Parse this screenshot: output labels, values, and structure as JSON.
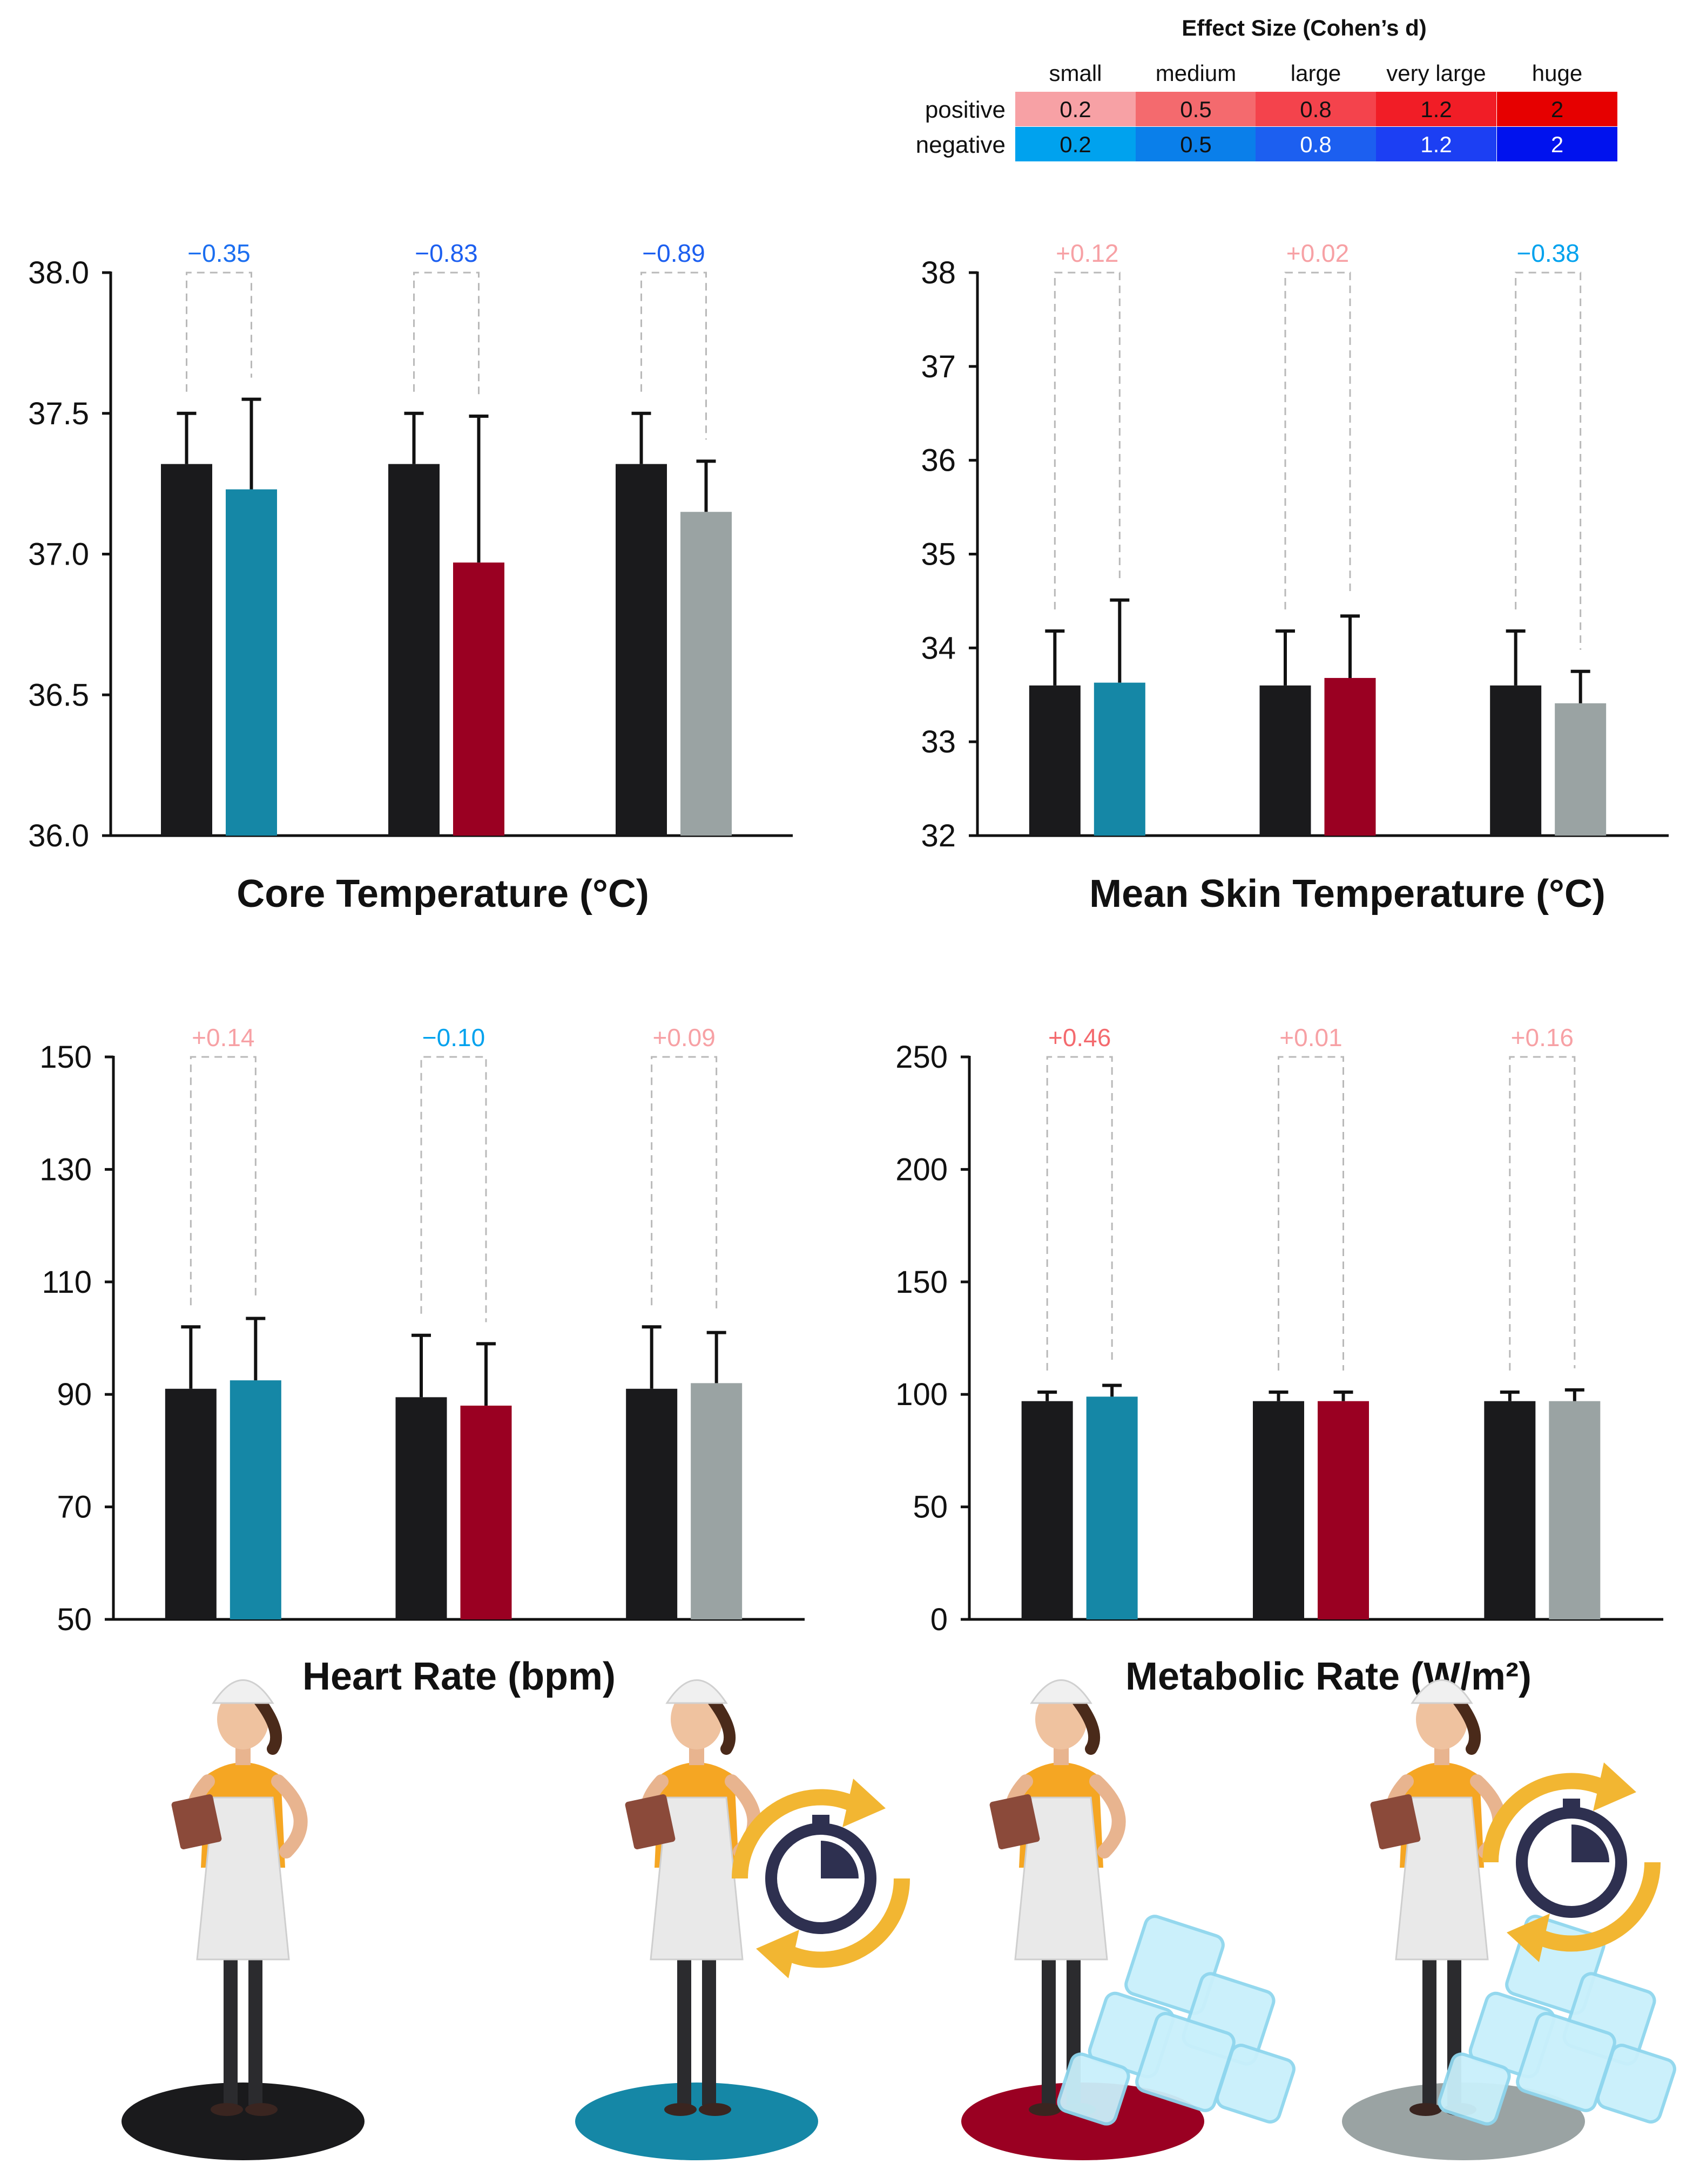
{
  "colors": {
    "baseline": "#1a1a1c",
    "condition1": "#1587a6",
    "condition2": "#9a0022",
    "condition3": "#9aa3a3",
    "axis": "#111111",
    "dash": "#b9b9b9"
  },
  "legend": {
    "title": "Effect Size (Cohen’s d)",
    "columns": [
      "small",
      "medium",
      "large",
      "very large",
      "huge"
    ],
    "rows": [
      {
        "label": "positive",
        "values": [
          "0.2",
          "0.5",
          "0.8",
          "1.2",
          "2"
        ],
        "colors": [
          "#f7a1a5",
          "#f46a6e",
          "#f4434c",
          "#f11d26",
          "#e60000"
        ]
      },
      {
        "label": "negative",
        "values": [
          "0.2",
          "0.5",
          "0.8",
          "1.2",
          "2"
        ],
        "colors": [
          "#00a2ee",
          "#0a7fea",
          "#1c5ff0",
          "#1c3ff3",
          "#0012ee"
        ]
      }
    ]
  },
  "chart_data": [
    {
      "type": "bar",
      "id": "core-temp",
      "title": "Core Temperature (°C)",
      "ylim": [
        36.0,
        38.0
      ],
      "yticks": [
        "36.0",
        "36.5",
        "37.0",
        "37.5",
        "38.0"
      ],
      "groups": [
        {
          "values": [
            37.32,
            37.23
          ],
          "errors": [
            0.18,
            0.32
          ],
          "effect": "−0.35",
          "effect_color": "#1c6ff0"
        },
        {
          "values": [
            37.32,
            36.97
          ],
          "errors": [
            0.18,
            0.52
          ],
          "effect": "−0.83",
          "effect_color": "#1c5ff0"
        },
        {
          "values": [
            37.32,
            37.15
          ],
          "errors": [
            0.18,
            0.18
          ],
          "effect": "−0.89",
          "effect_color": "#1c5ff0"
        }
      ]
    },
    {
      "type": "bar",
      "id": "skin-temp",
      "title": "Mean Skin Temperature (°C)",
      "ylim": [
        32,
        38
      ],
      "yticks": [
        "32",
        "33",
        "34",
        "35",
        "36",
        "37",
        "38"
      ],
      "groups": [
        {
          "values": [
            33.6,
            33.63
          ],
          "errors": [
            0.58,
            0.88
          ],
          "effect": "+0.12",
          "effect_color": "#f7a1a5"
        },
        {
          "values": [
            33.6,
            33.68
          ],
          "errors": [
            0.58,
            0.66
          ],
          "effect": "+0.02",
          "effect_color": "#f7a1a5"
        },
        {
          "values": [
            33.6,
            33.41
          ],
          "errors": [
            0.58,
            0.34
          ],
          "effect": "−0.38",
          "effect_color": "#00a2ee"
        }
      ]
    },
    {
      "type": "bar",
      "id": "heart-rate",
      "title": "Heart Rate (bpm)",
      "ylim": [
        50,
        150
      ],
      "yticks": [
        "50",
        "70",
        "90",
        "110",
        "130",
        "150"
      ],
      "groups": [
        {
          "values": [
            91,
            92.5
          ],
          "errors": [
            11,
            11
          ],
          "effect": "+0.14",
          "effect_color": "#f7a1a5"
        },
        {
          "values": [
            89.5,
            88
          ],
          "errors": [
            11,
            11
          ],
          "effect": "−0.10",
          "effect_color": "#00a2ee"
        },
        {
          "values": [
            91,
            92
          ],
          "errors": [
            11,
            9
          ],
          "effect": "+0.09",
          "effect_color": "#f7a1a5"
        }
      ]
    },
    {
      "type": "bar",
      "id": "metabolic-rate",
      "title": "Metabolic Rate (W/m²)",
      "ylim": [
        0,
        250
      ],
      "yticks": [
        "0",
        "50",
        "100",
        "150",
        "200",
        "250"
      ],
      "groups": [
        {
          "values": [
            97,
            99
          ],
          "errors": [
            4,
            5
          ],
          "effect": "+0.46",
          "effect_color": "#f46a6e"
        },
        {
          "values": [
            97,
            97
          ],
          "errors": [
            4,
            4
          ],
          "effect": "+0.01",
          "effect_color": "#f7a1a5"
        },
        {
          "values": [
            97,
            97
          ],
          "errors": [
            4,
            5
          ],
          "effect": "+0.16",
          "effect_color": "#f7a1a5"
        }
      ]
    }
  ],
  "illustrations": [
    {
      "name": "worker-baseline",
      "platform": "black",
      "timer": false,
      "ice": false
    },
    {
      "name": "worker-timer",
      "platform": "teal",
      "timer": true,
      "ice": false
    },
    {
      "name": "worker-ice",
      "platform": "red",
      "timer": false,
      "ice": true
    },
    {
      "name": "worker-timer-ice",
      "platform": "gray",
      "timer": true,
      "ice": true
    }
  ]
}
